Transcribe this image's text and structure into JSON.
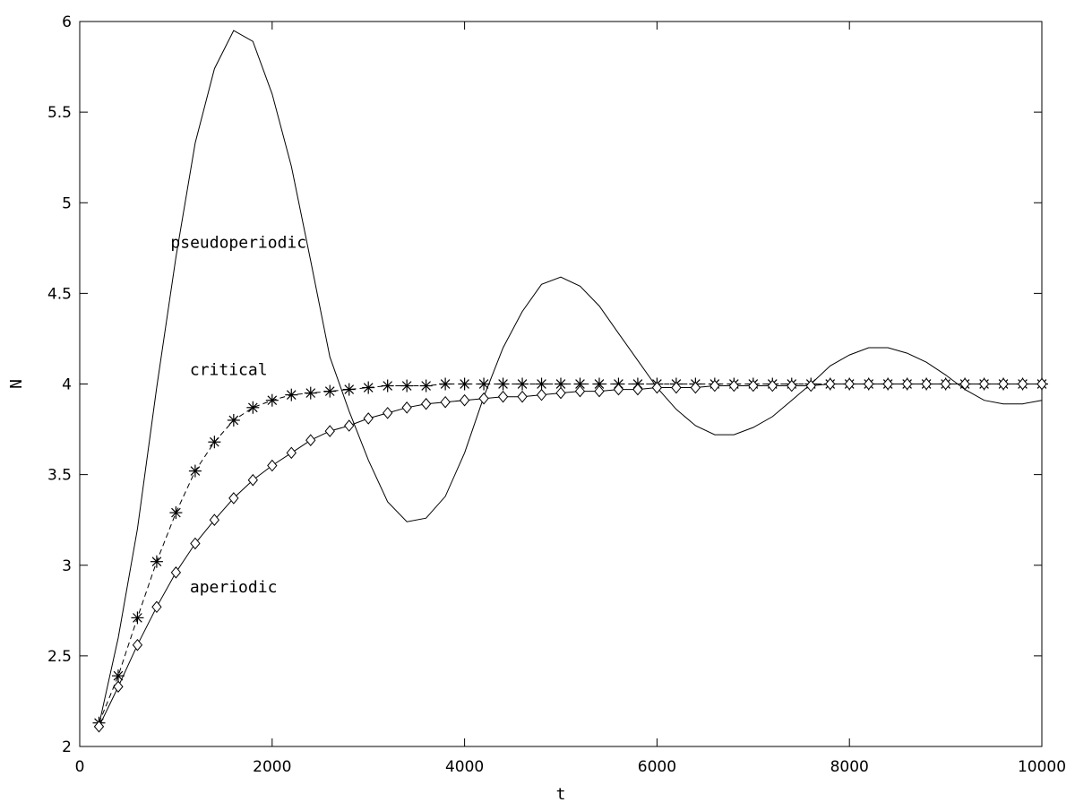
{
  "chart_data": {
    "type": "line",
    "title": "",
    "xlabel": "t",
    "ylabel": "N",
    "xlim": [
      0,
      10000
    ],
    "ylim": [
      2,
      6
    ],
    "xticks": [
      "0",
      "2000",
      "4000",
      "6000",
      "8000",
      "10000"
    ],
    "yticks": [
      "2",
      "2.5",
      "3",
      "3.5",
      "4",
      "4.5",
      "5",
      "5.5",
      "6"
    ],
    "grid": false,
    "legend": "none",
    "annotations": [
      {
        "text": "pseudoperiodic",
        "x": 1000,
        "y": 4.78
      },
      {
        "text": "critical",
        "x": 1200,
        "y": 4.08
      },
      {
        "text": "aperiodic",
        "x": 1200,
        "y": 2.88
      }
    ],
    "series": [
      {
        "line": "solid",
        "marker": "none",
        "x": [
          200,
          400,
          600,
          800,
          1000,
          1200,
          1400,
          1600,
          1800,
          2000,
          2200,
          2400,
          2600,
          2800,
          3000,
          3200,
          3400,
          3600,
          3800,
          4000,
          4200,
          4400,
          4600,
          4800,
          5000,
          5200,
          5400,
          5600,
          5800,
          6000,
          6200,
          6400,
          6600,
          6800,
          7000,
          7200,
          7400,
          7600,
          7800,
          8000,
          8200,
          8400,
          8600,
          8800,
          9000,
          9200,
          9400,
          9600,
          9800,
          10000
        ],
        "y": [
          2.12,
          2.6,
          3.2,
          3.98,
          4.7,
          5.33,
          5.74,
          5.95,
          5.89,
          5.6,
          5.2,
          4.68,
          4.15,
          3.85,
          3.58,
          3.35,
          3.24,
          3.26,
          3.38,
          3.62,
          3.93,
          4.2,
          4.4,
          4.55,
          4.59,
          4.54,
          4.43,
          4.28,
          4.13,
          3.98,
          3.86,
          3.77,
          3.72,
          3.72,
          3.76,
          3.82,
          3.91,
          4.0,
          4.1,
          4.16,
          4.2,
          4.2,
          4.17,
          4.12,
          4.05,
          3.97,
          3.91,
          3.89,
          3.89,
          3.91
        ]
      },
      {
        "line": "dashed",
        "marker": "asterisk",
        "x": [
          200,
          400,
          600,
          800,
          1000,
          1200,
          1400,
          1600,
          1800,
          2000,
          2200,
          2400,
          2600,
          2800,
          3000,
          3200,
          3400,
          3600,
          3800,
          4000,
          4200,
          4400,
          4600,
          4800,
          5000,
          5200,
          5400,
          5600,
          5800,
          6000,
          6200,
          6400,
          6600,
          6800,
          7000,
          7200,
          7400,
          7600,
          7800,
          8000,
          8200,
          8400,
          8600,
          8800,
          9000,
          9200,
          9400,
          9600,
          9800,
          10000
        ],
        "y": [
          2.13,
          2.39,
          2.71,
          3.02,
          3.29,
          3.52,
          3.68,
          3.8,
          3.87,
          3.91,
          3.94,
          3.95,
          3.96,
          3.97,
          3.98,
          3.99,
          3.99,
          3.99,
          4.0,
          4.0,
          4.0,
          4.0,
          4.0,
          4.0,
          4.0,
          4.0,
          4.0,
          4.0,
          4.0,
          4.0,
          4.0,
          4.0,
          4.0,
          4.0,
          4.0,
          4.0,
          4.0,
          4.0,
          4.0,
          4.0,
          4.0,
          4.0,
          4.0,
          4.0,
          4.0,
          4.0,
          4.0,
          4.0,
          4.0,
          4.0
        ]
      },
      {
        "line": "solid",
        "marker": "diamond",
        "x": [
          200,
          400,
          600,
          800,
          1000,
          1200,
          1400,
          1600,
          1800,
          2000,
          2200,
          2400,
          2600,
          2800,
          3000,
          3200,
          3400,
          3600,
          3800,
          4000,
          4200,
          4400,
          4600,
          4800,
          5000,
          5200,
          5400,
          5600,
          5800,
          6000,
          6200,
          6400,
          6600,
          6800,
          7000,
          7200,
          7400,
          7600,
          7800,
          8000,
          8200,
          8400,
          8600,
          8800,
          9000,
          9200,
          9400,
          9600,
          9800,
          10000
        ],
        "y": [
          2.11,
          2.33,
          2.56,
          2.77,
          2.96,
          3.12,
          3.25,
          3.37,
          3.47,
          3.55,
          3.62,
          3.69,
          3.74,
          3.77,
          3.81,
          3.84,
          3.87,
          3.89,
          3.9,
          3.91,
          3.92,
          3.93,
          3.93,
          3.94,
          3.95,
          3.96,
          3.96,
          3.97,
          3.97,
          3.98,
          3.98,
          3.98,
          3.99,
          3.99,
          3.99,
          3.99,
          3.99,
          3.99,
          4.0,
          4.0,
          4.0,
          4.0,
          4.0,
          4.0,
          4.0,
          4.0,
          4.0,
          4.0,
          4.0,
          4.0
        ]
      }
    ]
  }
}
